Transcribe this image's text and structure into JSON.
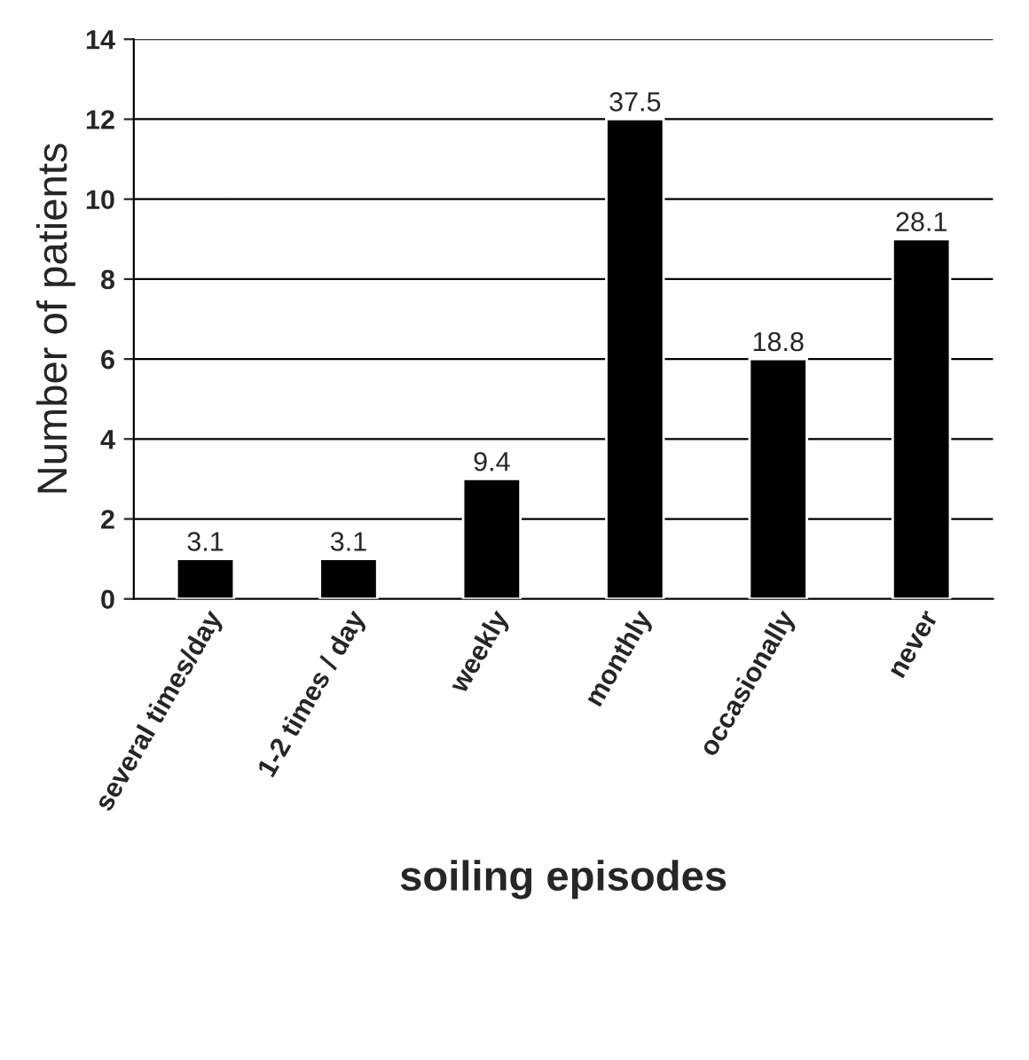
{
  "chart_data": {
    "type": "bar",
    "xlabel": "soiling episodes",
    "ylabel": "Number of patients",
    "categories": [
      "several times/day",
      "1-2 times / day",
      "weekly",
      "monthly",
      "occasionally",
      "never"
    ],
    "values": [
      1,
      1,
      3,
      12,
      6,
      9
    ],
    "annotations": [
      {
        "text": "3.1",
        "x": "several times/day",
        "y": 1
      },
      {
        "text": "3.1",
        "x": "1-2 times / day",
        "y": 1
      },
      {
        "text": "9.4",
        "x": "weekly",
        "y": 3
      },
      {
        "text": "37.5",
        "x": "monthly",
        "y": 12
      },
      {
        "text": "18.8",
        "x": "occasionally",
        "y": 6
      },
      {
        "text": "28.1",
        "x": "never",
        "y": 9
      }
    ],
    "color": "#000000",
    "ylim": [
      0,
      14
    ],
    "yticks": [
      0,
      2,
      4,
      6,
      8,
      10,
      12,
      14
    ],
    "grid": "y"
  }
}
